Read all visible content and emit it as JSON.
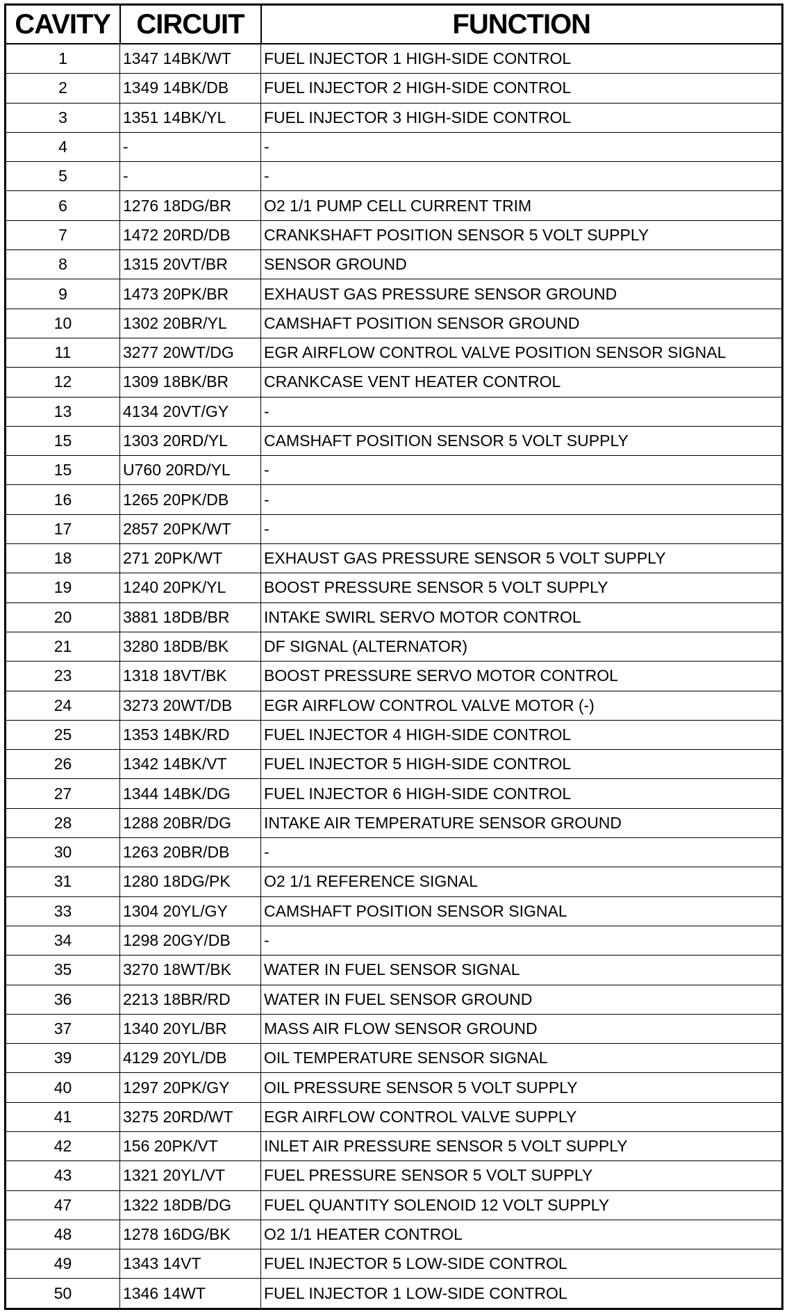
{
  "headers": {
    "cavity": "CAVITY",
    "circuit": "CIRCUIT",
    "function": "FUNCTION"
  },
  "rows": [
    {
      "cavity": "1",
      "circuit": "1347 14BK/WT",
      "function": "FUEL INJECTOR 1 HIGH-SIDE CONTROL"
    },
    {
      "cavity": "2",
      "circuit": "1349 14BK/DB",
      "function": "FUEL INJECTOR 2 HIGH-SIDE CONTROL"
    },
    {
      "cavity": "3",
      "circuit": "1351 14BK/YL",
      "function": "FUEL INJECTOR 3 HIGH-SIDE CONTROL"
    },
    {
      "cavity": "4",
      "circuit": "-",
      "function": "-"
    },
    {
      "cavity": "5",
      "circuit": "-",
      "function": "-"
    },
    {
      "cavity": "6",
      "circuit": "1276 18DG/BR",
      "function": "O2 1/1 PUMP CELL CURRENT TRIM"
    },
    {
      "cavity": "7",
      "circuit": "1472 20RD/DB",
      "function": "CRANKSHAFT POSITION SENSOR 5 VOLT SUPPLY"
    },
    {
      "cavity": "8",
      "circuit": "1315 20VT/BR",
      "function": "SENSOR GROUND"
    },
    {
      "cavity": "9",
      "circuit": "1473 20PK/BR",
      "function": "EXHAUST GAS PRESSURE SENSOR GROUND"
    },
    {
      "cavity": "10",
      "circuit": "1302 20BR/YL",
      "function": "CAMSHAFT POSITION SENSOR GROUND"
    },
    {
      "cavity": "11",
      "circuit": "3277 20WT/DG",
      "function": "EGR AIRFLOW CONTROL VALVE POSITION SENSOR SIGNAL"
    },
    {
      "cavity": "12",
      "circuit": "1309 18BK/BR",
      "function": "CRANKCASE VENT HEATER CONTROL"
    },
    {
      "cavity": "13",
      "circuit": "4134 20VT/GY",
      "function": "-"
    },
    {
      "cavity": "15",
      "circuit": "1303 20RD/YL",
      "function": "CAMSHAFT POSITION SENSOR 5 VOLT SUPPLY"
    },
    {
      "cavity": "15",
      "circuit": "U760 20RD/YL",
      "function": "-"
    },
    {
      "cavity": "16",
      "circuit": "1265 20PK/DB",
      "function": "-"
    },
    {
      "cavity": "17",
      "circuit": "2857 20PK/WT",
      "function": "-"
    },
    {
      "cavity": "18",
      "circuit": "271 20PK/WT",
      "function": "EXHAUST GAS PRESSURE SENSOR 5 VOLT SUPPLY"
    },
    {
      "cavity": "19",
      "circuit": "1240 20PK/YL",
      "function": "BOOST PRESSURE SENSOR 5 VOLT SUPPLY"
    },
    {
      "cavity": "20",
      "circuit": "3881 18DB/BR",
      "function": "INTAKE SWIRL SERVO MOTOR CONTROL"
    },
    {
      "cavity": "21",
      "circuit": "3280 18DB/BK",
      "function": "DF SIGNAL (ALTERNATOR)"
    },
    {
      "cavity": "23",
      "circuit": "1318 18VT/BK",
      "function": "BOOST PRESSURE SERVO MOTOR CONTROL"
    },
    {
      "cavity": "24",
      "circuit": "3273 20WT/DB",
      "function": "EGR AIRFLOW CONTROL VALVE MOTOR (-)"
    },
    {
      "cavity": "25",
      "circuit": "1353 14BK/RD",
      "function": "FUEL INJECTOR 4 HIGH-SIDE CONTROL"
    },
    {
      "cavity": "26",
      "circuit": "1342 14BK/VT",
      "function": "FUEL INJECTOR 5 HIGH-SIDE CONTROL"
    },
    {
      "cavity": "27",
      "circuit": "1344 14BK/DG",
      "function": "FUEL INJECTOR 6 HIGH-SIDE CONTROL"
    },
    {
      "cavity": "28",
      "circuit": "1288 20BR/DG",
      "function": "INTAKE AIR TEMPERATURE SENSOR GROUND"
    },
    {
      "cavity": "30",
      "circuit": "1263 20BR/DB",
      "function": "-"
    },
    {
      "cavity": "31",
      "circuit": "1280 18DG/PK",
      "function": "O2 1/1 REFERENCE SIGNAL"
    },
    {
      "cavity": "33",
      "circuit": "1304 20YL/GY",
      "function": "CAMSHAFT POSITION SENSOR SIGNAL"
    },
    {
      "cavity": "34",
      "circuit": "1298 20GY/DB",
      "function": "-"
    },
    {
      "cavity": "35",
      "circuit": "3270 18WT/BK",
      "function": "WATER IN FUEL SENSOR SIGNAL"
    },
    {
      "cavity": "36",
      "circuit": "2213 18BR/RD",
      "function": "WATER IN FUEL SENSOR GROUND"
    },
    {
      "cavity": "37",
      "circuit": "1340 20YL/BR",
      "function": "MASS AIR FLOW SENSOR GROUND"
    },
    {
      "cavity": "39",
      "circuit": "4129 20YL/DB",
      "function": "OIL TEMPERATURE SENSOR SIGNAL"
    },
    {
      "cavity": "40",
      "circuit": "1297 20PK/GY",
      "function": "OIL PRESSURE SENSOR 5 VOLT SUPPLY"
    },
    {
      "cavity": "41",
      "circuit": "3275 20RD/WT",
      "function": "EGR AIRFLOW CONTROL VALVE SUPPLY"
    },
    {
      "cavity": "42",
      "circuit": "156 20PK/VT",
      "function": "INLET AIR PRESSURE SENSOR 5 VOLT SUPPLY"
    },
    {
      "cavity": "43",
      "circuit": "1321 20YL/VT",
      "function": "FUEL PRESSURE SENSOR 5 VOLT SUPPLY"
    },
    {
      "cavity": "47",
      "circuit": "1322 18DB/DG",
      "function": "FUEL QUANTITY SOLENOID 12 VOLT SUPPLY"
    },
    {
      "cavity": "48",
      "circuit": "1278 16DG/BK",
      "function": "O2 1/1 HEATER CONTROL"
    },
    {
      "cavity": "49",
      "circuit": "1343 14VT",
      "function": "FUEL INJECTOR 5 LOW-SIDE CONTROL"
    },
    {
      "cavity": "50",
      "circuit": "1346 14WT",
      "function": "FUEL INJECTOR 1 LOW-SIDE CONTROL"
    }
  ]
}
